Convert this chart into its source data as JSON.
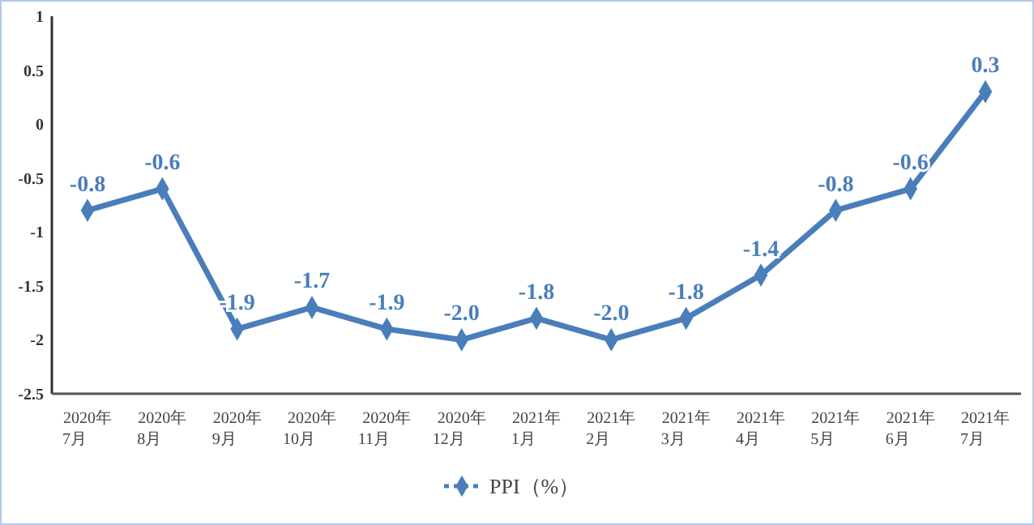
{
  "chart_data": {
    "type": "line",
    "categories": [
      "2020年\n7月",
      "2020年\n8月",
      "2020年\n9月",
      "2020年\n10月",
      "2020年\n11月",
      "2020年\n12月",
      "2021年\n1月",
      "2021年\n2月",
      "2021年\n3月",
      "2021年\n4月",
      "2021年\n5月",
      "2021年\n6月",
      "2021年\n7月"
    ],
    "series": [
      {
        "name": "PPI（%）",
        "color": "#4a7ebb",
        "values": [
          -0.8,
          -0.6,
          -1.9,
          -1.7,
          -1.9,
          -2.0,
          -1.8,
          -2.0,
          -1.8,
          -1.4,
          -0.8,
          -0.6,
          0.3
        ]
      }
    ],
    "value_labels": [
      "-0.8",
      "-0.6",
      "-1.9",
      "-1.7",
      "-1.9",
      "-2.0",
      "-1.8",
      "-2.0",
      "-1.8",
      "-1.4",
      "-0.8",
      "-0.6",
      "0.3"
    ],
    "ylim": [
      -2.5,
      1
    ],
    "yticks": [
      -2.5,
      -2,
      -1.5,
      -1,
      -0.5,
      0,
      0.5,
      1
    ],
    "grid": false,
    "legend": "bottom",
    "marker": "diamond",
    "line_style": "solid"
  }
}
